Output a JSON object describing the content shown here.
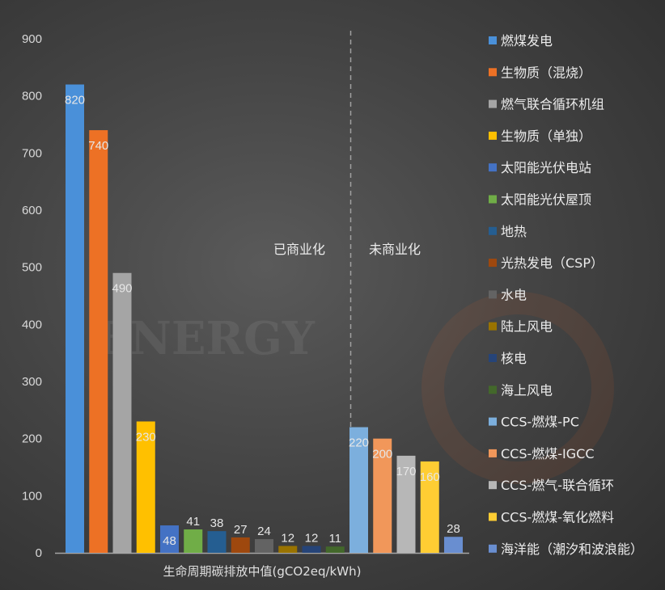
{
  "chart_data": {
    "type": "bar",
    "title": "",
    "xlabel": "生命周期碳排放中值(gCO2eq/kWh)",
    "ylabel": "",
    "ylim": [
      0,
      900
    ],
    "yticks": [
      0,
      100,
      200,
      300,
      400,
      500,
      600,
      700,
      800,
      900
    ],
    "grid": false,
    "legend_position": "right",
    "series": [
      {
        "name": "燃煤发电",
        "value": 820,
        "color": "#4a90d9"
      },
      {
        "name": "生物质（混烧）",
        "value": 740,
        "color": "#ed7125"
      },
      {
        "name": "燃气联合循环机组",
        "value": 490,
        "color": "#a5a5a5"
      },
      {
        "name": "生物质（单独）",
        "value": 230,
        "color": "#ffc000"
      },
      {
        "name": "太阳能光伏电站",
        "value": 48,
        "color": "#4472c4"
      },
      {
        "name": "太阳能光伏屋顶",
        "value": 41,
        "color": "#70ad47"
      },
      {
        "name": "地热",
        "value": 38,
        "color": "#255e91"
      },
      {
        "name": "光热发电（CSP）",
        "value": 27,
        "color": "#9e480e"
      },
      {
        "name": "水电",
        "value": 24,
        "color": "#636363"
      },
      {
        "name": "陆上风电",
        "value": 12,
        "color": "#997300"
      },
      {
        "name": "核电",
        "value": 12,
        "color": "#264478"
      },
      {
        "name": "海上风电",
        "value": 11,
        "color": "#43682b"
      },
      {
        "name": "CCS-燃煤-PC",
        "value": 220,
        "color": "#7cafdd"
      },
      {
        "name": "CCS-燃煤-IGCC",
        "value": 200,
        "color": "#f1975a"
      },
      {
        "name": "CCS-燃气-联合循环",
        "value": 170,
        "color": "#b7b7b7"
      },
      {
        "name": "CCS-燃煤-氧化燃料",
        "value": 160,
        "color": "#ffcd33"
      },
      {
        "name": "海洋能（潮汐和波浪能）",
        "value": 28,
        "color": "#698ed0"
      }
    ],
    "annotations": {
      "commercial": "已商业化",
      "non_commercial": "未商业化"
    },
    "watermark": "ENERGY"
  }
}
